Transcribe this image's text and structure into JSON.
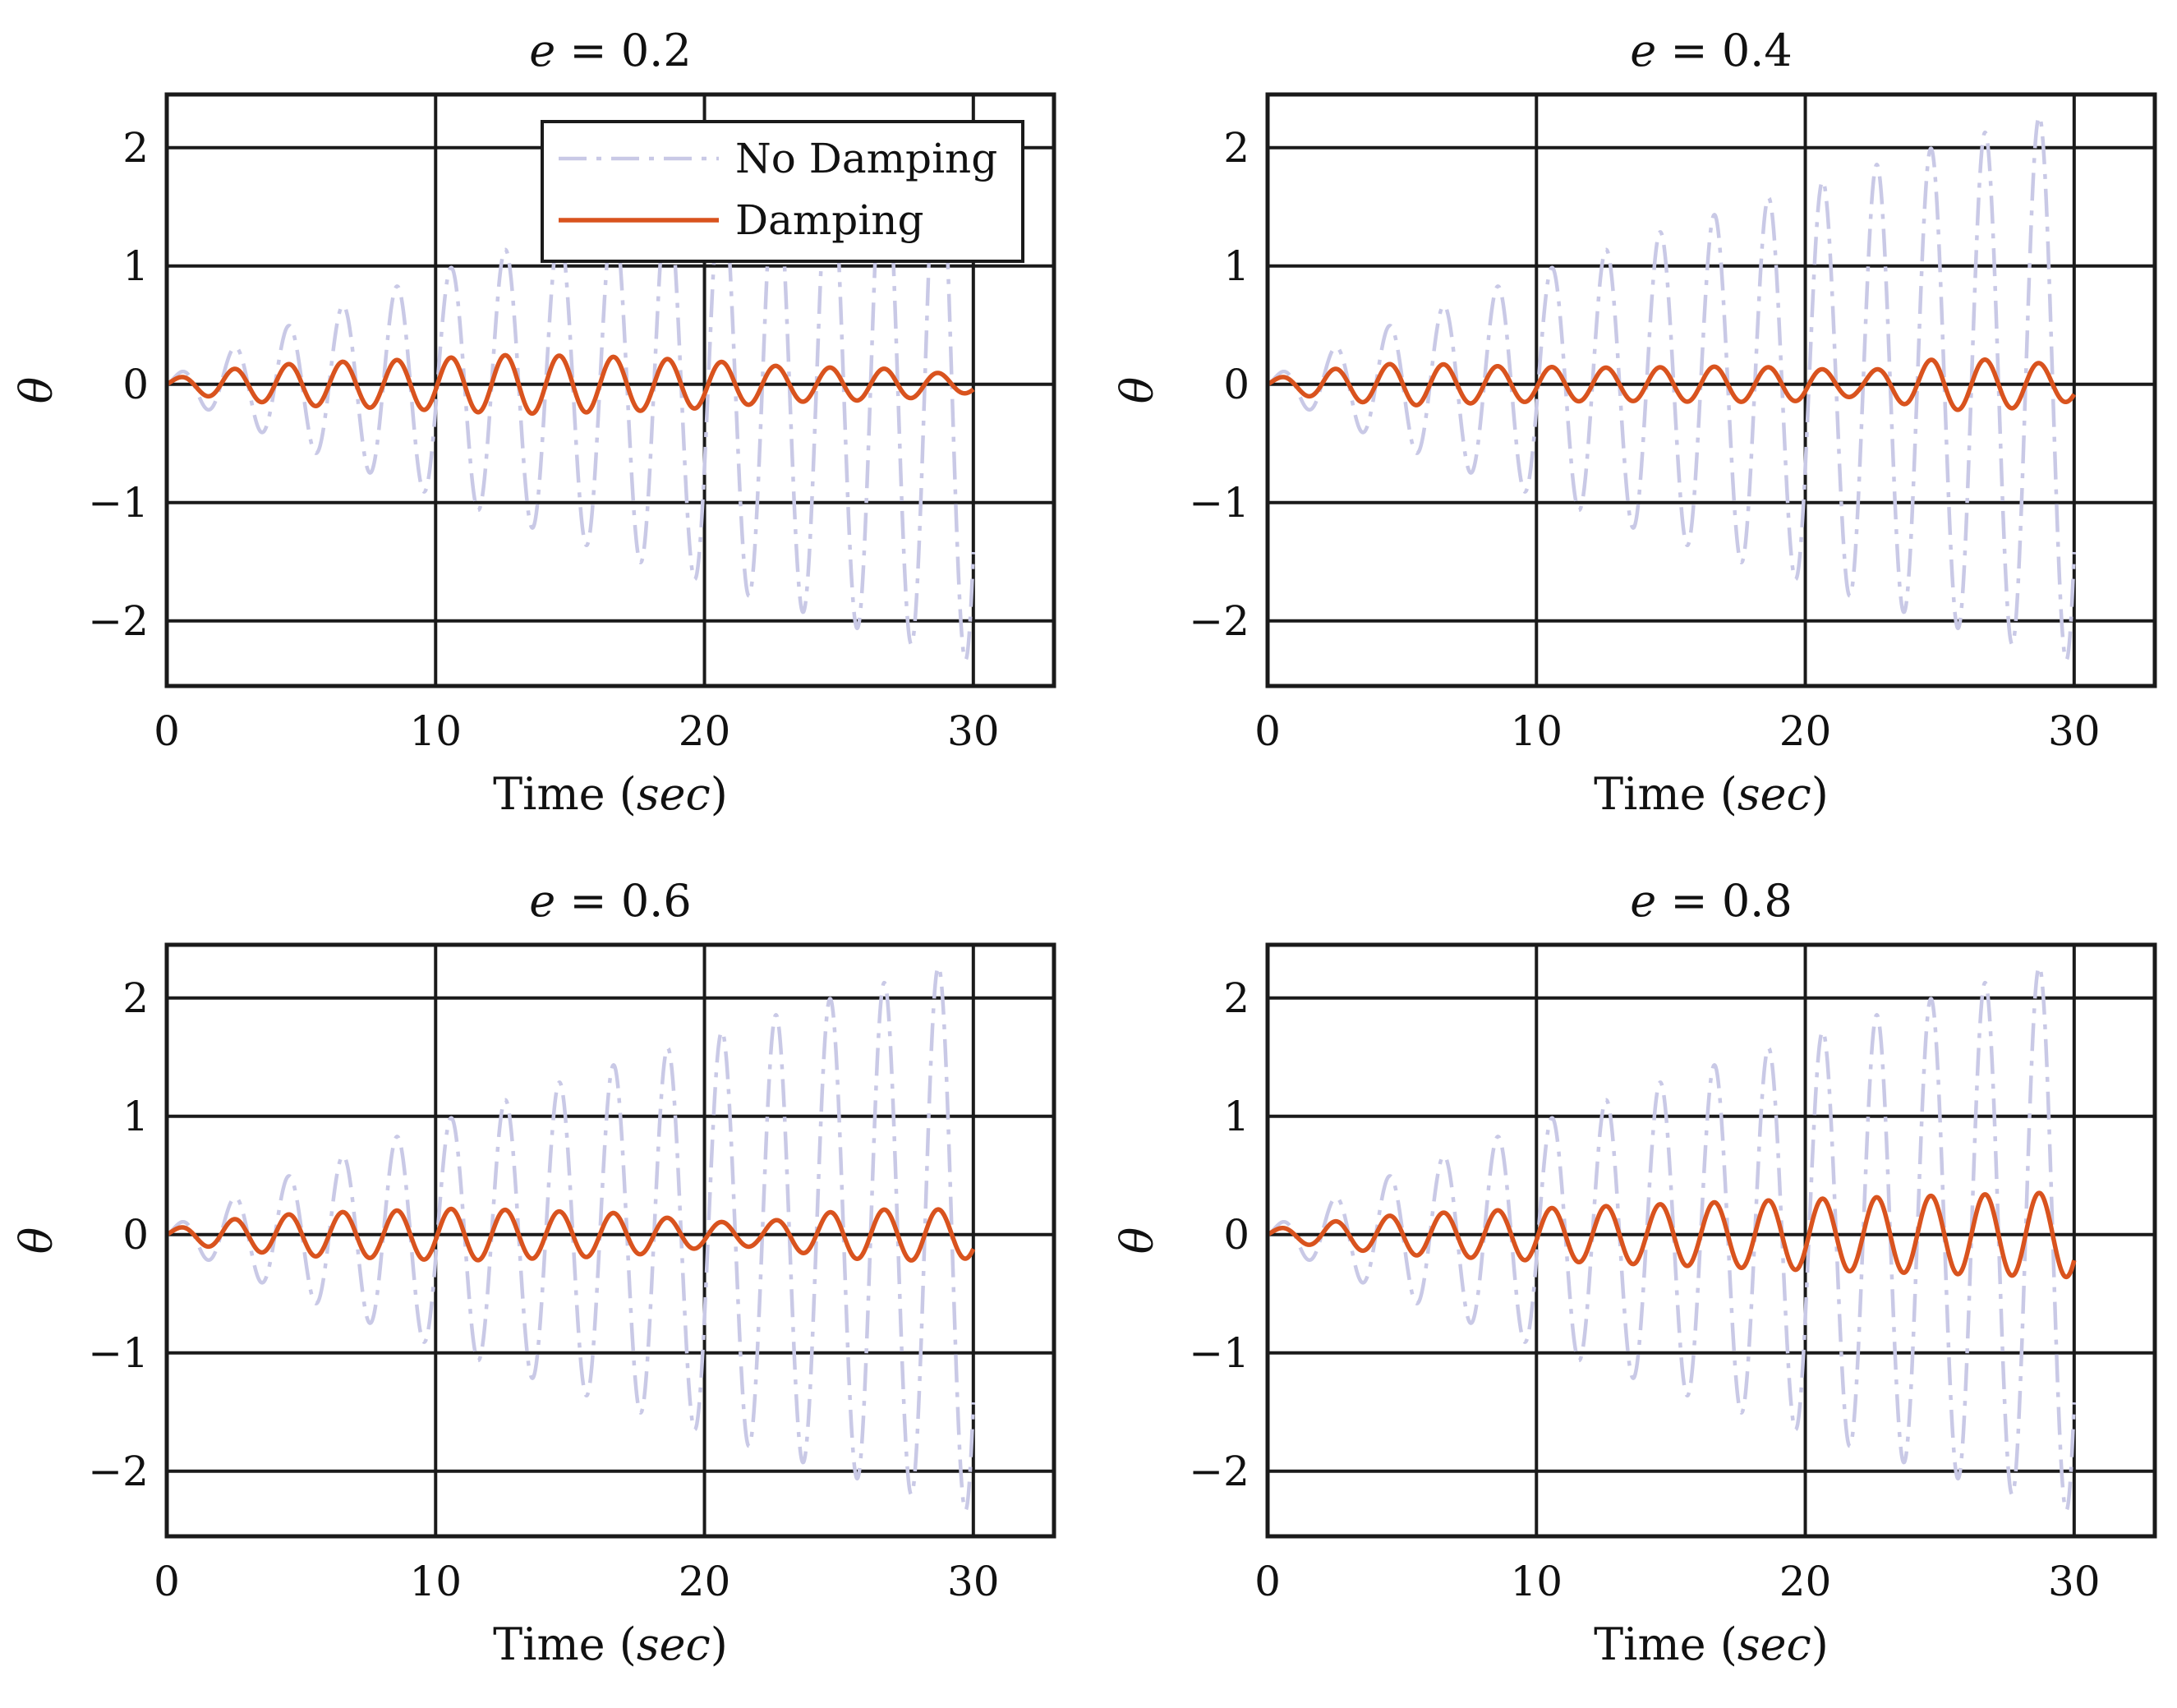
{
  "figure": {
    "panel_titles": [
      "e = 0.2",
      "e = 0.4",
      "e = 0.6",
      "e = 0.8"
    ]
  },
  "colors": {
    "no_damping": "#c9c9e6",
    "damping": "#d9531e",
    "grid": "#1a1a1a",
    "axes": "#1a1a1a"
  },
  "legend": {
    "no_damping_label": "No Damping",
    "damping_label": "Damping"
  },
  "chart_data": [
    {
      "type": "line",
      "title": "e = 0.2",
      "param_e": 0.2,
      "xlabel": "Time (sec)",
      "ylabel": "θ",
      "xlim": [
        0,
        33
      ],
      "ylim": [
        -2.55,
        2.45
      ],
      "xticks": [
        0,
        10,
        20,
        30
      ],
      "yticks": [
        -2,
        -1,
        0,
        1,
        2
      ],
      "grid": true,
      "legend": "top-right",
      "series": [
        {
          "name": "No Damping",
          "style": "dashdot",
          "t_range": [
            0,
            30
          ],
          "omega": 3.12,
          "amp_start": 0.03,
          "amp_end": 2.35,
          "amp_power": 0.85
        },
        {
          "name": "Damping",
          "style": "solid",
          "t_range": [
            0,
            30
          ],
          "omega": 3.12,
          "amp_profile": [
            [
              0,
              0.04
            ],
            [
              2,
              0.12
            ],
            [
              5,
              0.18
            ],
            [
              8,
              0.2
            ],
            [
              10,
              0.22
            ],
            [
              13,
              0.25
            ],
            [
              17,
              0.23
            ],
            [
              20,
              0.2
            ],
            [
              23,
              0.15
            ],
            [
              27,
              0.13
            ],
            [
              30,
              0.07
            ]
          ]
        }
      ]
    },
    {
      "type": "line",
      "title": "e = 0.4",
      "param_e": 0.4,
      "xlabel": "Time (sec)",
      "ylabel": "θ",
      "xlim": [
        0,
        33
      ],
      "ylim": [
        -2.55,
        2.45
      ],
      "xticks": [
        0,
        10,
        20,
        30
      ],
      "yticks": [
        -2,
        -1,
        0,
        1,
        2
      ],
      "grid": true,
      "legend": "none",
      "series": [
        {
          "name": "No Damping",
          "style": "dashdot",
          "t_range": [
            0,
            30
          ],
          "omega": 3.12,
          "amp_start": 0.03,
          "amp_end": 2.35,
          "amp_power": 0.85
        },
        {
          "name": "Damping",
          "style": "solid",
          "t_range": [
            0,
            30
          ],
          "omega": 3.12,
          "amp_profile": [
            [
              0,
              0.04
            ],
            [
              2,
              0.12
            ],
            [
              5,
              0.18
            ],
            [
              9,
              0.15
            ],
            [
              13,
              0.14
            ],
            [
              17,
              0.15
            ],
            [
              20,
              0.14
            ],
            [
              22,
              0.1
            ],
            [
              25,
              0.22
            ],
            [
              28,
              0.2
            ],
            [
              30,
              0.14
            ]
          ]
        }
      ]
    },
    {
      "type": "line",
      "title": "e = 0.6",
      "param_e": 0.6,
      "xlabel": "Time (sec)",
      "ylabel": "θ",
      "xlim": [
        0,
        33
      ],
      "ylim": [
        -2.55,
        2.45
      ],
      "xticks": [
        0,
        10,
        20,
        30
      ],
      "yticks": [
        -2,
        -1,
        0,
        1,
        2
      ],
      "grid": true,
      "legend": "none",
      "series": [
        {
          "name": "No Damping",
          "style": "dashdot",
          "t_range": [
            0,
            30
          ],
          "omega": 3.12,
          "amp_start": 0.03,
          "amp_end": 2.35,
          "amp_power": 0.85
        },
        {
          "name": "Damping",
          "style": "solid",
          "t_range": [
            0,
            30
          ],
          "omega": 3.12,
          "amp_profile": [
            [
              0,
              0.04
            ],
            [
              2,
              0.12
            ],
            [
              5,
              0.18
            ],
            [
              8,
              0.2
            ],
            [
              11,
              0.22
            ],
            [
              14,
              0.2
            ],
            [
              17,
              0.18
            ],
            [
              20,
              0.11
            ],
            [
              22,
              0.1
            ],
            [
              25,
              0.2
            ],
            [
              28,
              0.22
            ],
            [
              30,
              0.2
            ]
          ]
        }
      ]
    },
    {
      "type": "line",
      "title": "e = 0.8",
      "param_e": 0.8,
      "xlabel": "Time (sec)",
      "ylabel": "θ",
      "xlim": [
        0,
        33
      ],
      "ylim": [
        -2.55,
        2.45
      ],
      "xticks": [
        0,
        10,
        20,
        30
      ],
      "yticks": [
        -2,
        -1,
        0,
        1,
        2
      ],
      "grid": true,
      "legend": "none",
      "series": [
        {
          "name": "No Damping",
          "style": "dashdot",
          "t_range": [
            0,
            30
          ],
          "omega": 3.12,
          "amp_start": 0.03,
          "amp_end": 2.35,
          "amp_power": 0.85
        },
        {
          "name": "Damping",
          "style": "solid",
          "t_range": [
            0,
            30
          ],
          "omega": 3.12,
          "amp_profile": [
            [
              0,
              0.04
            ],
            [
              2,
              0.1
            ],
            [
              5,
              0.17
            ],
            [
              10,
              0.22
            ],
            [
              15,
              0.26
            ],
            [
              20,
              0.3
            ],
            [
              25,
              0.33
            ],
            [
              30,
              0.36
            ]
          ]
        }
      ]
    }
  ]
}
